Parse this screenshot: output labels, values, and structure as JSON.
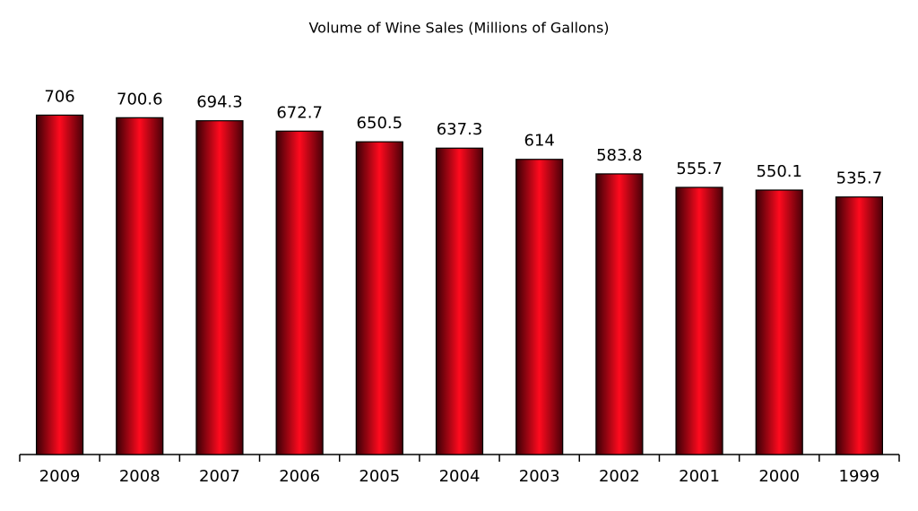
{
  "chart_data": {
    "type": "bar",
    "title": "Volume of Wine Sales (Millions of Gallons)",
    "categories": [
      "2009",
      "2008",
      "2007",
      "2006",
      "2005",
      "2004",
      "2003",
      "2002",
      "2001",
      "2000",
      "1999"
    ],
    "values": [
      706,
      700.6,
      694.3,
      672.7,
      650.5,
      637.3,
      614,
      583.8,
      555.7,
      550.1,
      535.7
    ],
    "color": "#ff0a1e",
    "ylim": [
      0,
      800
    ]
  }
}
